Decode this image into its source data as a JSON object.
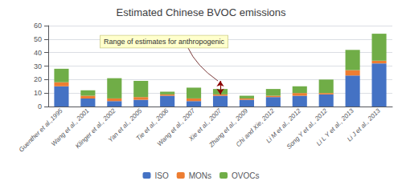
{
  "chart_data": {
    "type": "bar",
    "stacked": true,
    "title": "Estimated Chinese BVOC emissions",
    "categories": [
      "Guenther et al.,1995",
      "Wang et al., 2001",
      "Klinger et al., 2002",
      "Yan et al., 2005",
      "Tie et al., 2006",
      "Wang et al., 2007",
      "Xie et al., 2007",
      "Zhang et al., 2009",
      "Chi and Xie, 2012",
      "Li M et al., 2012",
      "Song Y et al., 2012",
      "Li L Y et al., 2013",
      "Li J et al., 2013"
    ],
    "series": [
      {
        "name": "ISO",
        "color": "#4472C4",
        "values": [
          15,
          6,
          4,
          5,
          8,
          4,
          8,
          5,
          7,
          8,
          9,
          23,
          32
        ]
      },
      {
        "name": "MONs",
        "color": "#ED7D31",
        "values": [
          3,
          2,
          2,
          2,
          1,
          2,
          1,
          1,
          1,
          2,
          1,
          4,
          2
        ]
      },
      {
        "name": "OVOCs",
        "color": "#70AD47",
        "values": [
          10,
          4,
          15,
          12,
          2,
          8,
          4,
          2,
          5,
          5,
          10,
          15,
          20
        ]
      }
    ],
    "ylim": [
      0,
      60
    ],
    "yticks": [
      0,
      10,
      20,
      30,
      40,
      50,
      60
    ],
    "grid": true,
    "legend": "bottom",
    "annotations": [
      {
        "text": "Range of estimates for anthropogenic",
        "x": "Xie et al., 2007",
        "y": [
          9,
          19
        ]
      }
    ]
  }
}
